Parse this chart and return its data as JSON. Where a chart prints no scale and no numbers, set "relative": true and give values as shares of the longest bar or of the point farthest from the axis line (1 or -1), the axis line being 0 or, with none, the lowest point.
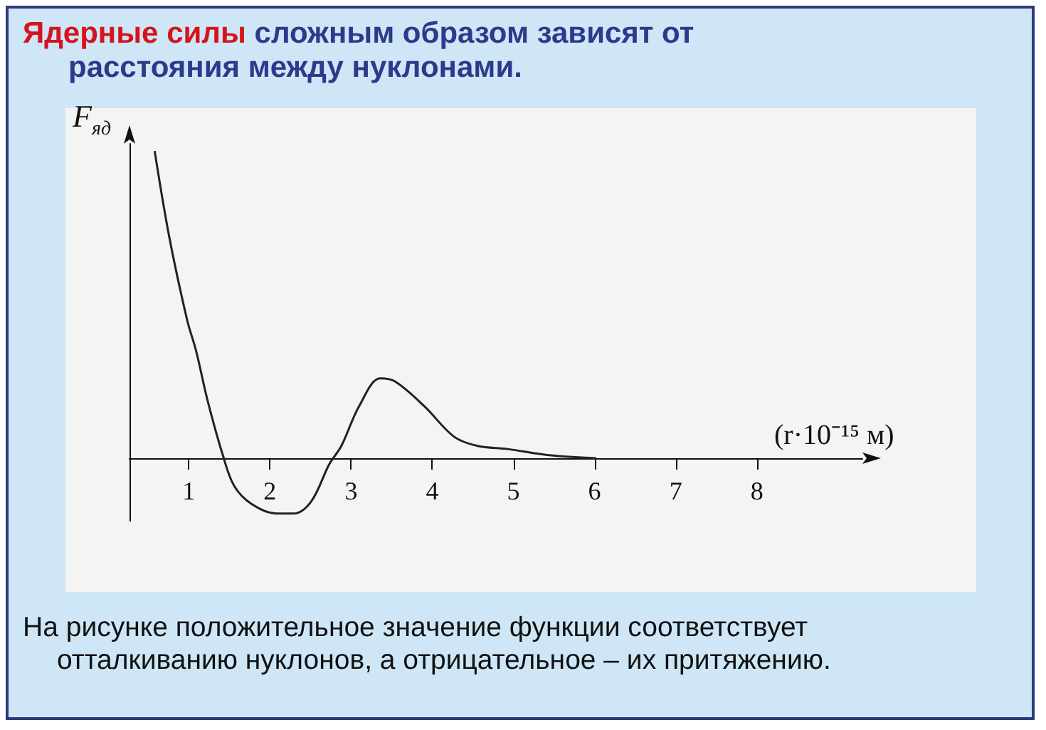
{
  "chart_data": {
    "type": "line",
    "title": "Ядерные силы сложным образом зависят от расстояния между нуклонами.",
    "xlabel": "(r·10⁻¹⁵ м)",
    "ylabel": "F$_{яд}$",
    "relative": true,
    "x": [
      0.58,
      0.76,
      0.98,
      1.09,
      1.23,
      1.42,
      1.56,
      1.78,
      2.08,
      2.29,
      2.51,
      2.73,
      2.88,
      3.1,
      3.36,
      3.54,
      3.9,
      4.27,
      4.56,
      4.93,
      5.44,
      6.02
    ],
    "series": [
      {
        "color": "#222222",
        "values": [
          1,
          0.72,
          0.45,
          0.35,
          0.19,
          0.01,
          -0.09,
          -0.15,
          -0.18,
          -0.18,
          -0.14,
          -0.02,
          0.04,
          0.17,
          0.26,
          0.25,
          0.17,
          0.07,
          0.04,
          0.03,
          0.01,
          0
        ]
      }
    ],
    "xlim": [
      0.27,
      9.3
    ],
    "xticks": [
      1,
      2,
      3,
      4,
      5,
      6,
      7,
      8
    ],
    "grid": false,
    "marker": "none",
    "line_style": "solid",
    "annotations": [
      "На рисунке положительное значение функции соответствует отталкиванию нуклонов, а отрицательное – их притяжению."
    ]
  }
}
